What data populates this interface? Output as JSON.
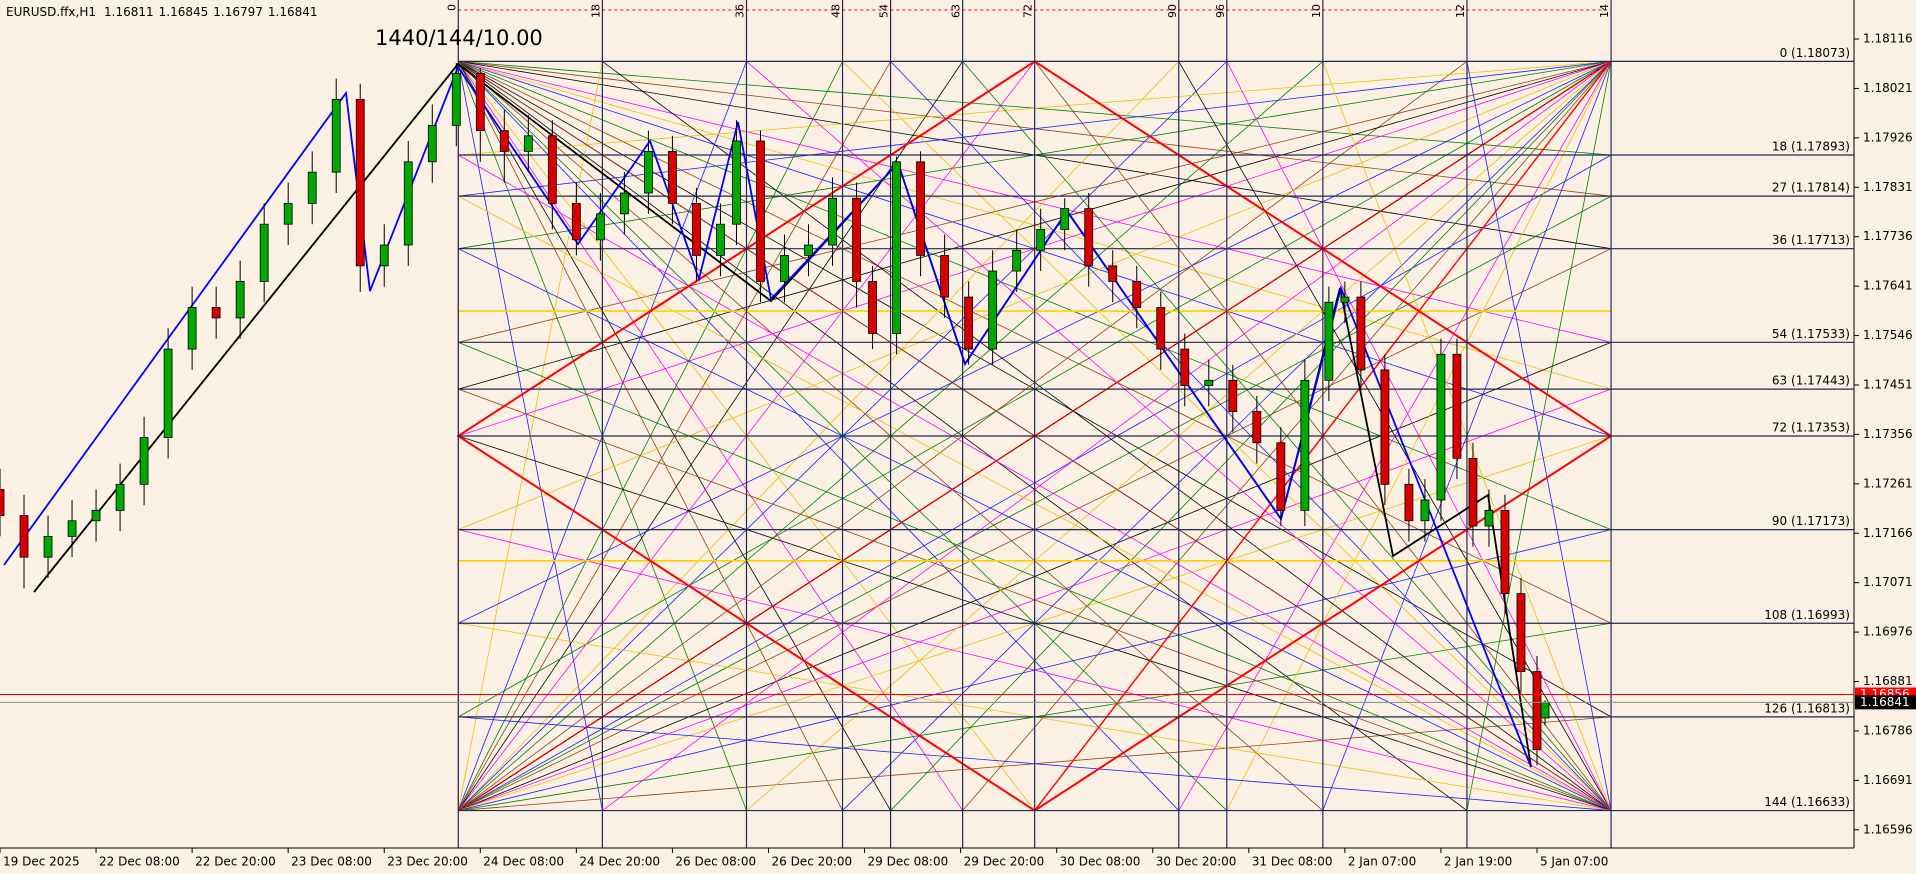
{
  "chart_data": {
    "type": "candlestick",
    "symbol": "EURUSD.ffx,H1",
    "header_ohlc": [
      1.16811,
      1.16845,
      1.16797,
      1.16841
    ],
    "bull_color": "#00a800",
    "bear_color": "#d80000",
    "xlim": [
      0,
      231.6
    ],
    "xticks": [
      {
        "value": 0,
        "label": "19 Dec 2025"
      },
      {
        "value": 12,
        "label": "22 Dec 08:00"
      },
      {
        "value": 24,
        "label": "22 Dec 20:00"
      },
      {
        "value": 36,
        "label": "23 Dec 08:00"
      },
      {
        "value": 48,
        "label": "23 Dec 20:00"
      },
      {
        "value": 60,
        "label": "24 Dec 08:00"
      },
      {
        "value": 72,
        "label": "24 Dec 20:00"
      },
      {
        "value": 84,
        "label": "26 Dec 08:00"
      },
      {
        "value": 96,
        "label": "26 Dec 20:00"
      },
      {
        "value": 108,
        "label": "29 Dec 08:00"
      },
      {
        "value": 120,
        "label": "29 Dec 20:00"
      },
      {
        "value": 132,
        "label": "30 Dec 08:00"
      },
      {
        "value": 144,
        "label": "30 Dec 20:00"
      },
      {
        "value": 156,
        "label": "31 Dec 08:00"
      },
      {
        "value": 168,
        "label": "2 Jan 07:00"
      },
      {
        "value": 180,
        "label": "2 Jan 19:00"
      },
      {
        "value": 192,
        "label": "5 Jan 07:00"
      }
    ],
    "ylim": [
      1.16561,
      1.18191
    ],
    "yticks": [
      1.18116,
      1.18021,
      1.17926,
      1.17831,
      1.17736,
      1.17641,
      1.17546,
      1.17451,
      1.17356,
      1.17261,
      1.17166,
      1.17071,
      1.16976,
      1.16881,
      1.16786,
      1.16691,
      1.16596
    ],
    "x": [
      0,
      3,
      6,
      9,
      12,
      15,
      18,
      21,
      24,
      27,
      30,
      33,
      36,
      39,
      42,
      45,
      48,
      51,
      54,
      57,
      60,
      63,
      66,
      69,
      72,
      75,
      78,
      81,
      84,
      87,
      90,
      92,
      95,
      98,
      101,
      104,
      107,
      109,
      112,
      115,
      118,
      121,
      124,
      127,
      130,
      133,
      136,
      139,
      142,
      145,
      148,
      151,
      154,
      157,
      160,
      163,
      166,
      168,
      170,
      173,
      176,
      178,
      180,
      182,
      184,
      186,
      188,
      190,
      192,
      193
    ],
    "open": [
      1.1725,
      1.172,
      1.1712,
      1.1716,
      1.1719,
      1.1721,
      1.1726,
      1.1735,
      1.1752,
      1.176,
      1.1758,
      1.1765,
      1.1776,
      1.178,
      1.1786,
      1.18,
      1.1768,
      1.1772,
      1.1788,
      1.1795,
      1.1805,
      1.1794,
      1.179,
      1.1793,
      1.178,
      1.1773,
      1.1778,
      1.1782,
      1.179,
      1.178,
      1.177,
      1.1776,
      1.1792,
      1.1765,
      1.177,
      1.1772,
      1.1781,
      1.1765,
      1.1755,
      1.1788,
      1.177,
      1.1762,
      1.1752,
      1.1767,
      1.1771,
      1.1775,
      1.1779,
      1.1768,
      1.1765,
      1.176,
      1.1752,
      1.1745,
      1.1746,
      1.174,
      1.1734,
      1.1721,
      1.1746,
      1.1761,
      1.1762,
      1.1748,
      1.1726,
      1.1719,
      1.1723,
      1.1751,
      1.1731,
      1.1718,
      1.1721,
      1.1705,
      1.169,
      1.16811
    ],
    "high": [
      1.1729,
      1.1724,
      1.172,
      1.1723,
      1.1725,
      1.173,
      1.1739,
      1.1756,
      1.1764,
      1.1764,
      1.1769,
      1.178,
      1.1784,
      1.179,
      1.1804,
      1.1803,
      1.1776,
      1.1792,
      1.1799,
      1.1807,
      1.1806,
      1.1798,
      1.1797,
      1.1796,
      1.1784,
      1.1782,
      1.1786,
      1.1794,
      1.1793,
      1.1783,
      1.178,
      1.1796,
      1.1794,
      1.1774,
      1.1776,
      1.1785,
      1.1784,
      1.1768,
      1.1789,
      1.179,
      1.1774,
      1.1765,
      1.1771,
      1.1775,
      1.1779,
      1.1781,
      1.1782,
      1.1771,
      1.1768,
      1.1763,
      1.1755,
      1.175,
      1.1749,
      1.1743,
      1.1737,
      1.175,
      1.1764,
      1.1765,
      1.1765,
      1.1751,
      1.1729,
      1.1727,
      1.1754,
      1.1754,
      1.1734,
      1.1725,
      1.1724,
      1.1708,
      1.1693,
      1.16845
    ],
    "low": [
      1.1716,
      1.1706,
      1.1708,
      1.1712,
      1.1715,
      1.1717,
      1.1722,
      1.1731,
      1.1748,
      1.1754,
      1.1754,
      1.1761,
      1.1772,
      1.1776,
      1.1782,
      1.1763,
      1.1764,
      1.1768,
      1.1784,
      1.1791,
      1.1788,
      1.1784,
      1.1786,
      1.1775,
      1.177,
      1.1769,
      1.1774,
      1.1778,
      1.1776,
      1.1765,
      1.1766,
      1.1772,
      1.1761,
      1.1761,
      1.1766,
      1.1768,
      1.176,
      1.1752,
      1.1751,
      1.1766,
      1.1758,
      1.1749,
      1.1749,
      1.1763,
      1.1767,
      1.1771,
      1.1764,
      1.1761,
      1.1756,
      1.1748,
      1.1741,
      1.1741,
      1.1736,
      1.173,
      1.1718,
      1.1718,
      1.1742,
      1.1757,
      1.1744,
      1.1722,
      1.1715,
      1.1715,
      1.1719,
      1.1727,
      1.1714,
      1.1714,
      1.1701,
      1.1686,
      1.1672,
      1.16797
    ],
    "close": [
      1.172,
      1.1712,
      1.1716,
      1.1719,
      1.1721,
      1.1726,
      1.1735,
      1.1752,
      1.176,
      1.1758,
      1.1765,
      1.1776,
      1.178,
      1.1786,
      1.18,
      1.1768,
      1.1772,
      1.1788,
      1.1795,
      1.1805,
      1.1794,
      1.179,
      1.1793,
      1.178,
      1.1773,
      1.1778,
      1.1782,
      1.179,
      1.178,
      1.177,
      1.1776,
      1.1792,
      1.1765,
      1.177,
      1.1772,
      1.1781,
      1.1765,
      1.1755,
      1.1788,
      1.177,
      1.1762,
      1.1752,
      1.1767,
      1.1771,
      1.1775,
      1.1779,
      1.1768,
      1.1765,
      1.176,
      1.1752,
      1.1745,
      1.1746,
      1.174,
      1.1734,
      1.1721,
      1.1746,
      1.1761,
      1.1762,
      1.1748,
      1.1726,
      1.1719,
      1.1723,
      1.1751,
      1.1731,
      1.1718,
      1.1721,
      1.1705,
      1.169,
      1.1675,
      1.16841
    ],
    "gann": {
      "title": "1440/144/10.00",
      "levels": [
        {
          "value": 1.18073,
          "label": "0 (1.18073)"
        },
        {
          "value": 1.17893,
          "label": "18 (1.17893)"
        },
        {
          "value": 1.17814,
          "label": "27 (1.17814)"
        },
        {
          "value": 1.17713,
          "label": "36 (1.17713)"
        },
        {
          "value": 1.17533,
          "label": "54 (1.17533)"
        },
        {
          "value": 1.17443,
          "label": "63 (1.17443)"
        },
        {
          "value": 1.17353,
          "label": "72 (1.17353)"
        },
        {
          "value": 1.17173,
          "label": "90 (1.17173)"
        },
        {
          "value": 1.16993,
          "label": "108 (1.16993)"
        },
        {
          "value": 1.16813,
          "label": "126 (1.16813)"
        },
        {
          "value": 1.16633,
          "label": "144 (1.16633)"
        }
      ],
      "time_marks": [
        {
          "value": 57.25,
          "label": "0"
        },
        {
          "value": 75.25,
          "label": "18"
        },
        {
          "value": 93.25,
          "label": "36"
        },
        {
          "value": 105.25,
          "label": "48"
        },
        {
          "value": 111.25,
          "label": "54"
        },
        {
          "value": 120.25,
          "label": "63"
        },
        {
          "value": 129.25,
          "label": "72"
        },
        {
          "value": 147.25,
          "label": "90"
        },
        {
          "value": 153.25,
          "label": "96"
        },
        {
          "value": 165.25,
          "label": "10"
        },
        {
          "value": 183.25,
          "label": "12"
        },
        {
          "value": 201.25,
          "label": "14"
        }
      ]
    },
    "price_lines": [
      {
        "value": 1.16856,
        "color": "#ff0000",
        "tag_color": "#ff0000"
      },
      {
        "value": 1.16841,
        "color": "#8a8a8a",
        "tag_color": "#000000"
      }
    ]
  }
}
